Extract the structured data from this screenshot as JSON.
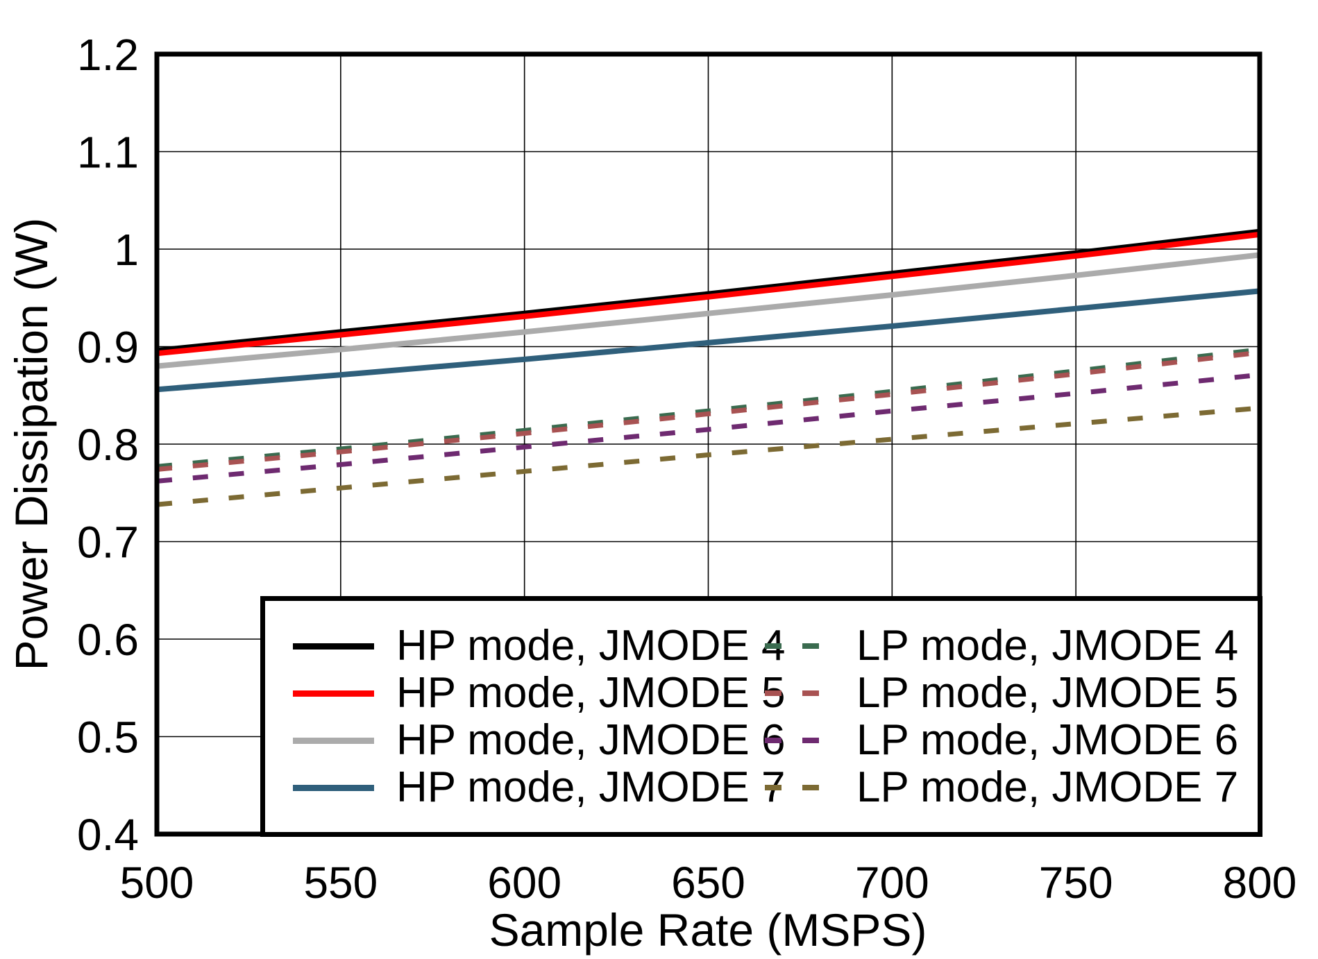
{
  "chart_data": {
    "type": "line",
    "title": "",
    "xlabel": "Sample Rate (MSPS)",
    "ylabel": "Power Dissipation (W)",
    "xlim": [
      500,
      800
    ],
    "ylim": [
      0.4,
      1.2
    ],
    "xticks": {
      "values": [
        500,
        550,
        600,
        650,
        700,
        750,
        800
      ],
      "labels": [
        "500",
        "550",
        "600",
        "650",
        "700",
        "750",
        "800"
      ]
    },
    "yticks": {
      "values": [
        0.4,
        0.5,
        0.6,
        0.7,
        0.8,
        0.9,
        1.0,
        1.1,
        1.2
      ],
      "labels": [
        "0.4",
        "0.5",
        "0.6",
        "0.7",
        "0.8",
        "0.9",
        "1",
        "1.1",
        "1.2"
      ]
    },
    "grid": true,
    "frame_color": "#000000",
    "grid_color": "#000000",
    "legend": {
      "position": "inside-bottom",
      "columns": 2
    },
    "x": [
      500,
      550,
      600,
      650,
      700,
      750,
      800
    ],
    "series": [
      {
        "name": "HP mode, JMODE 4",
        "color": "#000000",
        "line_style": "solid",
        "values": [
          0.896,
          0.915,
          0.934,
          0.954,
          0.975,
          0.996,
          1.018
        ]
      },
      {
        "name": "HP mode, JMODE 5",
        "color": "#ff0000",
        "line_style": "solid",
        "values": [
          0.893,
          0.912,
          0.931,
          0.951,
          0.972,
          0.993,
          1.015
        ]
      },
      {
        "name": "HP mode, JMODE 6",
        "color": "#ababab",
        "line_style": "solid",
        "values": [
          0.88,
          0.897,
          0.915,
          0.934,
          0.953,
          0.973,
          0.994
        ]
      },
      {
        "name": "HP mode, JMODE 7",
        "color": "#2f5f7b",
        "line_style": "solid",
        "values": [
          0.856,
          0.871,
          0.887,
          0.904,
          0.921,
          0.939,
          0.957
        ]
      },
      {
        "name": "LP mode, JMODE 4",
        "color": "#3a6b4f",
        "line_style": "dashed",
        "values": [
          0.777,
          0.795,
          0.814,
          0.834,
          0.854,
          0.875,
          0.897
        ]
      },
      {
        "name": "LP mode, JMODE 5",
        "color": "#a85252",
        "line_style": "dashed",
        "values": [
          0.774,
          0.792,
          0.811,
          0.831,
          0.851,
          0.872,
          0.894
        ]
      },
      {
        "name": "LP mode, JMODE 6",
        "color": "#6e2a70",
        "line_style": "dashed",
        "values": [
          0.762,
          0.779,
          0.797,
          0.815,
          0.834,
          0.852,
          0.871
        ]
      },
      {
        "name": "LP mode, JMODE 7",
        "color": "#7c6a33",
        "line_style": "dashed",
        "values": [
          0.738,
          0.755,
          0.772,
          0.789,
          0.805,
          0.821,
          0.837
        ]
      }
    ]
  }
}
